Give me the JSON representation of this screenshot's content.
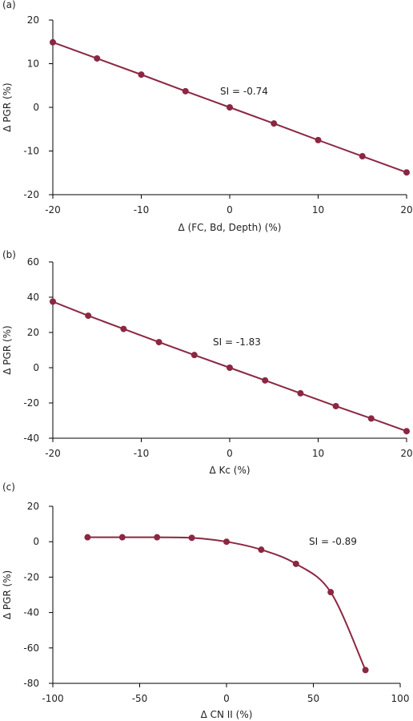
{
  "colors": {
    "series": "#8b2742",
    "axis": "#000000",
    "text": "#222222"
  },
  "chart_data": [
    {
      "type": "line",
      "panel_label": "(a)",
      "xlabel": "Δ  (FC, Bd, Depth) (%)",
      "ylabel": "Δ PGR (%)",
      "xlim": [
        -20,
        20
      ],
      "ylim": [
        -20,
        20
      ],
      "xticks": [
        -20,
        -10,
        0,
        10,
        20
      ],
      "yticks": [
        -20,
        -10,
        0,
        10,
        20
      ],
      "annotation": "SI = -0.74",
      "curve": "linear",
      "x": [
        -20,
        -15,
        -10,
        -5,
        0,
        5,
        10,
        15,
        20
      ],
      "y": [
        14.9,
        11.2,
        7.5,
        3.7,
        0,
        -3.7,
        -7.5,
        -11.2,
        -14.9
      ]
    },
    {
      "type": "line",
      "panel_label": "(b)",
      "xlabel": "Δ Kc (%)",
      "ylabel": "Δ PGR (%)",
      "xlim": [
        -20,
        20
      ],
      "ylim": [
        -40,
        60
      ],
      "xticks": [
        -20,
        -10,
        0,
        10,
        20
      ],
      "yticks": [
        -40,
        -20,
        0,
        20,
        40,
        60
      ],
      "annotation": "SI = -1.83",
      "curve": "linear",
      "x": [
        -20,
        -16,
        -12,
        -8,
        -4,
        0,
        4,
        8,
        12,
        16,
        20
      ],
      "y": [
        37.5,
        29.5,
        22,
        14.5,
        7.2,
        0,
        -7.2,
        -14.5,
        -21.8,
        -28.8,
        -36
      ]
    },
    {
      "type": "line",
      "panel_label": "(c)",
      "xlabel": "Δ CN II (%)",
      "ylabel": "Δ PGR (%)",
      "xlim": [
        -100,
        100
      ],
      "ylim": [
        -80,
        20
      ],
      "xticks": [
        -100,
        -50,
        0,
        50,
        100
      ],
      "yticks": [
        -80,
        -60,
        -40,
        -20,
        0,
        20
      ],
      "annotation": "SI = -0.89",
      "curve": "smooth",
      "x": [
        -80,
        -60,
        -40,
        -20,
        0,
        20,
        40,
        60,
        80
      ],
      "y": [
        2.5,
        2.5,
        2.5,
        2.2,
        0,
        -4.5,
        -12.5,
        -28.5,
        -72.5
      ]
    }
  ]
}
